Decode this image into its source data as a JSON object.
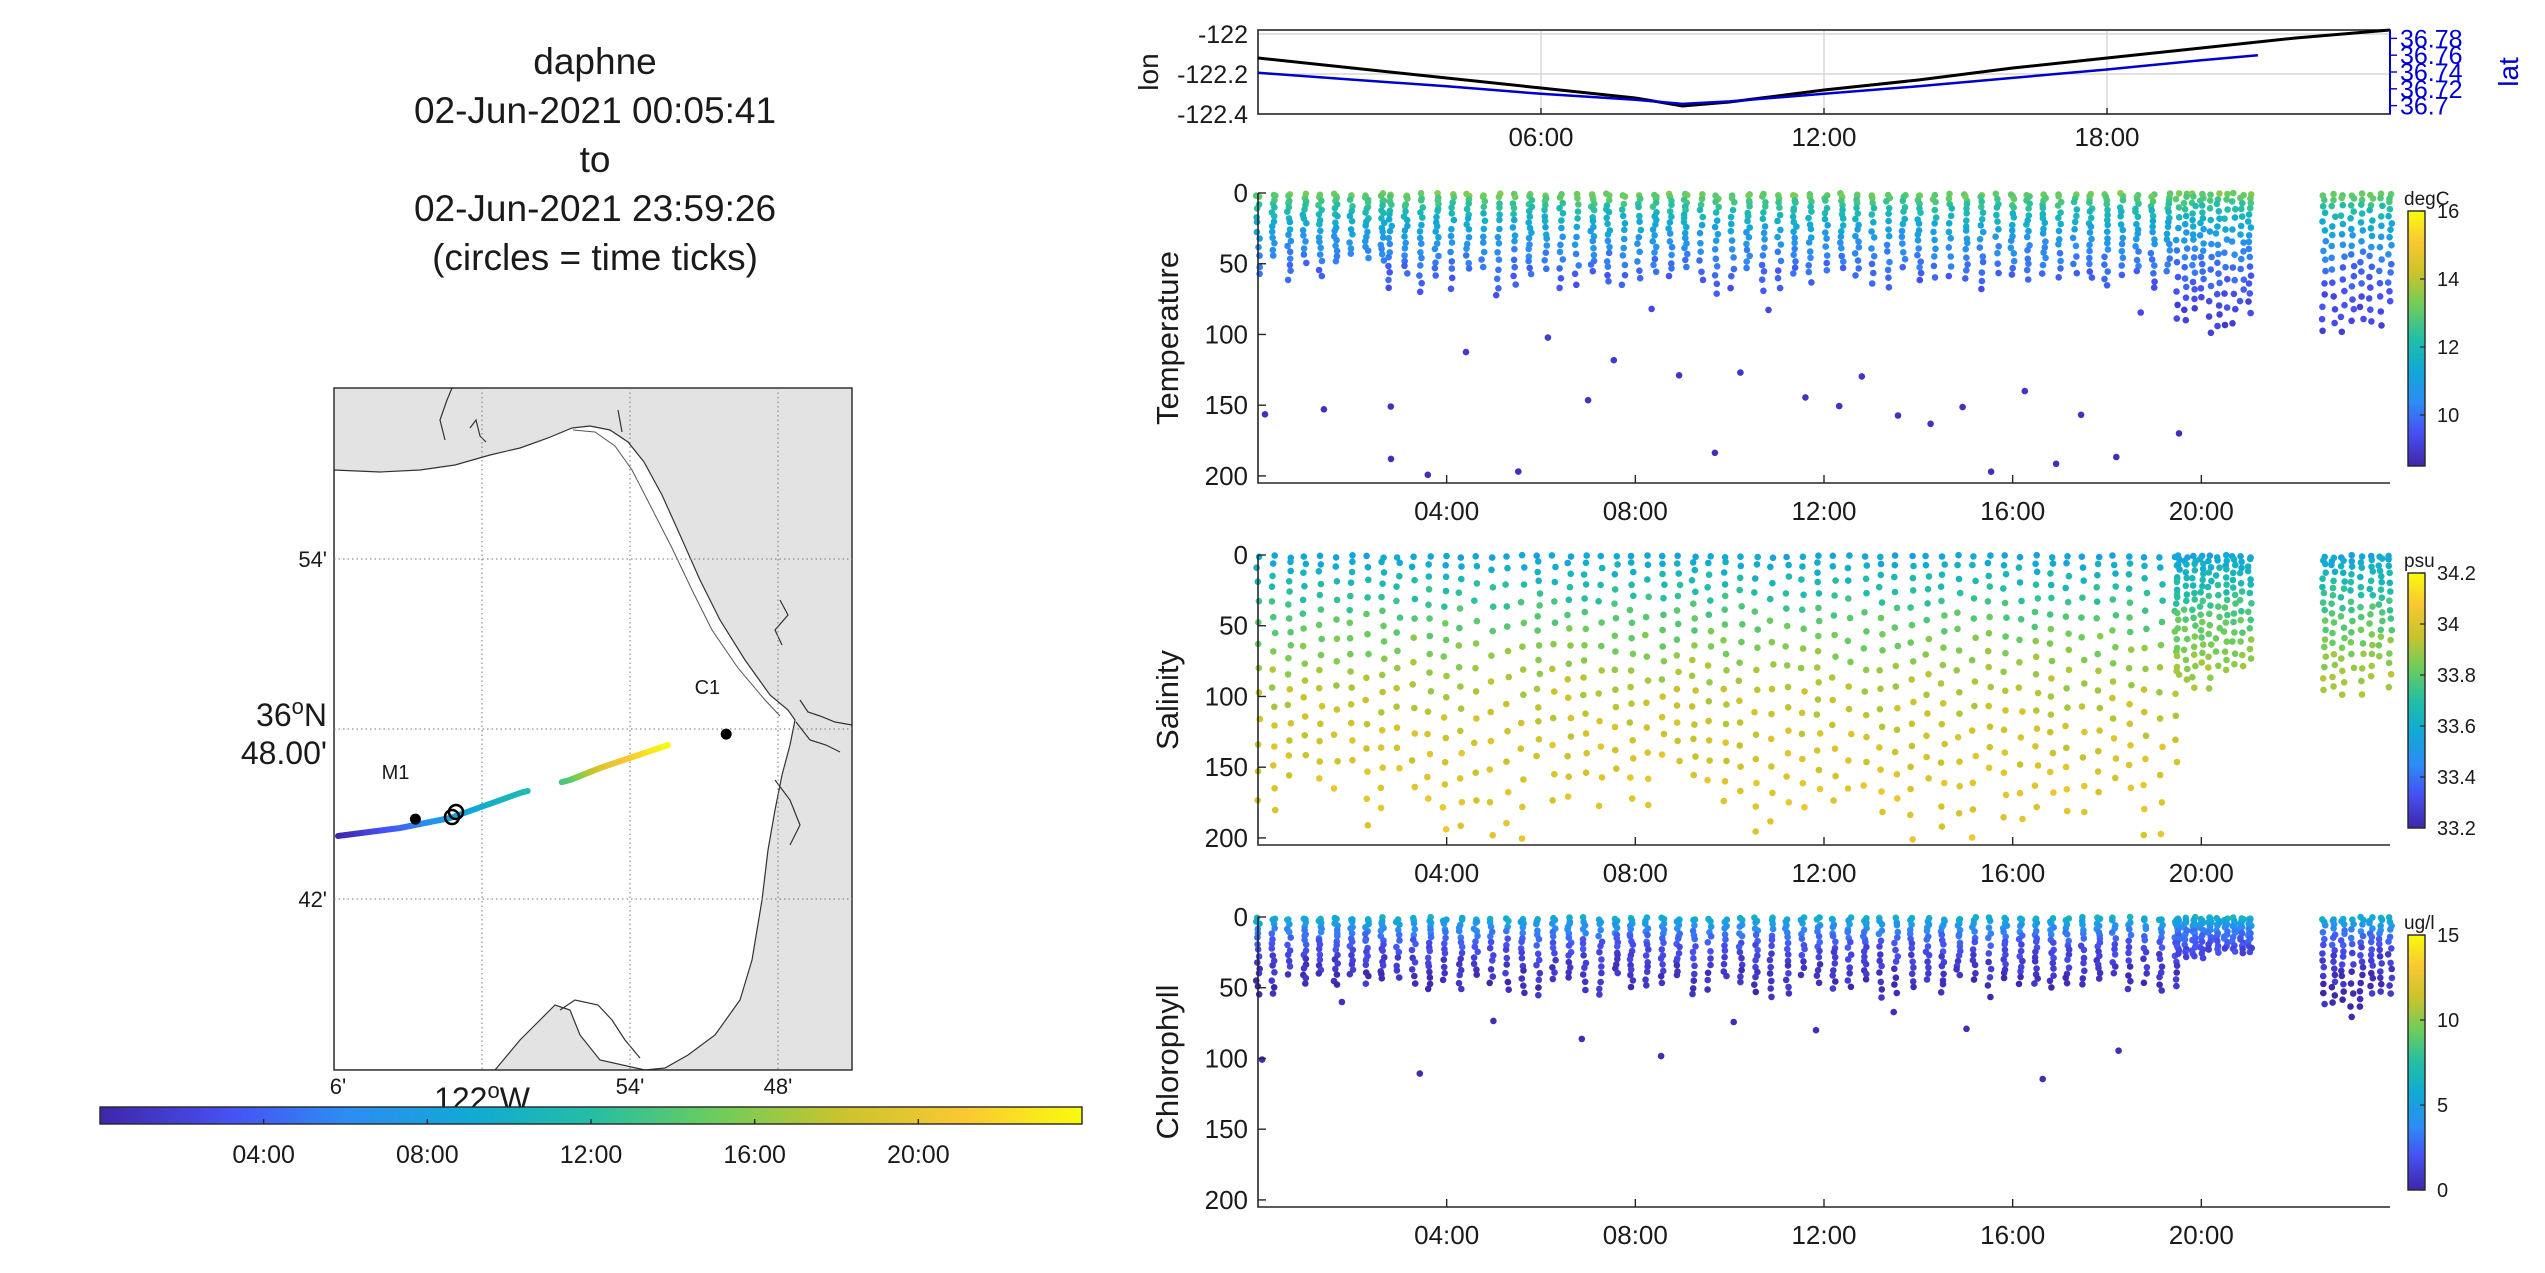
{
  "title_block": {
    "line1": "daphne",
    "line2": "02-Jun-2021 00:05:41",
    "line3": "to",
    "line4": "02-Jun-2021 23:59:26",
    "line5": "(circles = time ticks)"
  },
  "map": {
    "lat_ticks": [
      "54'",
      "42'"
    ],
    "lat_main_deg": "36",
    "lat_main_sup": "o",
    "lat_main_dir": "N",
    "lat_main_min": "48.00'",
    "lon_ticks": [
      "6'",
      "54'",
      "48'"
    ],
    "lon_main_deg": "122",
    "lon_main_sup": "o",
    "lon_main_dir": "W",
    "stations": [
      {
        "name": "M1",
        "lon": -122.045,
        "lat": 36.747
      },
      {
        "name": "C1",
        "lon": -121.835,
        "lat": 36.797
      }
    ],
    "colors": {
      "land": "#e3e3e3",
      "water": "#ffffff"
    }
  },
  "time_colorbar": {
    "ticks": [
      "04:00",
      "08:00",
      "12:00",
      "16:00",
      "20:00"
    ]
  },
  "chart_data": [
    {
      "type": "line",
      "panel": "position",
      "ylabel_left": "lon",
      "ylabel_right": "lat",
      "xlim": [
        0,
        24
      ],
      "xticks": [
        "06:00",
        "12:00",
        "18:00"
      ],
      "ylim_left": [
        -122.4,
        -121.98
      ],
      "yticks_left": [
        "-122",
        "-122.2",
        "-122.4"
      ],
      "ylim_right": [
        36.69,
        36.79
      ],
      "yticks_right": [
        "36.78",
        "36.76",
        "36.74",
        "36.72",
        "36.7"
      ],
      "grid": true,
      "series": [
        {
          "axis": "left",
          "color": "#000000",
          "x": [
            0,
            2,
            4,
            6,
            8,
            9,
            10,
            12,
            14,
            16,
            18,
            20,
            22,
            24
          ],
          "y": [
            -122.12,
            -122.17,
            -122.22,
            -122.27,
            -122.32,
            -122.36,
            -122.34,
            -122.28,
            -122.23,
            -122.17,
            -122.12,
            -122.07,
            -122.02,
            -121.98
          ]
        },
        {
          "axis": "right",
          "color": "#0000cc",
          "x": [
            0,
            2,
            4,
            6,
            8,
            9,
            10,
            12,
            14,
            16,
            18,
            20,
            21.2
          ],
          "y": [
            36.739,
            36.731,
            36.723,
            36.714,
            36.707,
            36.702,
            36.705,
            36.714,
            36.723,
            36.733,
            36.743,
            36.754,
            36.76
          ]
        }
      ]
    },
    {
      "type": "scatter",
      "panel": "temperature",
      "ylabel": "Temperature",
      "units": "degC",
      "xlim": [
        0,
        24
      ],
      "xticks": [
        "04:00",
        "08:00",
        "12:00",
        "16:00",
        "20:00"
      ],
      "ylim": [
        0,
        205
      ],
      "ylim_reversed": true,
      "yticks": [
        "0",
        "50",
        "100",
        "150",
        "200"
      ],
      "clim": [
        8.5,
        16
      ],
      "cticks": [
        "16",
        "14",
        "12",
        "10"
      ],
      "profiles": [
        {
          "start": 0.0,
          "end": 2.8,
          "every": 0.33,
          "max_depth": 60,
          "deep_every": 4,
          "deep_depth": 200
        },
        {
          "start": 2.8,
          "end": 19.5,
          "every": 0.33,
          "max_depth": 70,
          "deep_every": 2,
          "deep_depth": 200
        },
        {
          "start": 19.5,
          "end": 21.2,
          "every": 0.17,
          "max_depth": 100,
          "deep_every": 0,
          "deep_depth": 100
        },
        {
          "start": 22.6,
          "end": 24.0,
          "every": 0.2,
          "max_depth": 100,
          "deep_every": 0,
          "deep_depth": 100
        }
      ],
      "value_model": {
        "surface": 13.3,
        "base": 8.7,
        "scale": 40
      }
    },
    {
      "type": "scatter",
      "panel": "salinity",
      "ylabel": "Salinity",
      "units": "psu",
      "xlim": [
        0,
        24
      ],
      "xticks": [
        "04:00",
        "08:00",
        "12:00",
        "16:00",
        "20:00"
      ],
      "ylim": [
        0,
        205
      ],
      "ylim_reversed": true,
      "yticks": [
        "0",
        "50",
        "100",
        "150",
        "200"
      ],
      "clim": [
        33.2,
        34.2
      ],
      "cticks": [
        "34.2",
        "34",
        "33.8",
        "33.6",
        "33.4",
        "33.2"
      ],
      "profiles": [
        {
          "start": 0.0,
          "end": 19.5,
          "every": 0.33,
          "max_depth": 200,
          "deep_every": 0,
          "deep_depth": 200
        },
        {
          "start": 19.5,
          "end": 21.2,
          "every": 0.17,
          "max_depth": 100,
          "deep_every": 0,
          "deep_depth": 100
        },
        {
          "start": 22.6,
          "end": 24.0,
          "every": 0.2,
          "max_depth": 100,
          "deep_every": 0,
          "deep_depth": 100
        }
      ],
      "value_model": {
        "surface": 33.55,
        "base": 34.05,
        "scale": 70
      }
    },
    {
      "type": "scatter",
      "panel": "chlorophyll",
      "ylabel": "Chlorophyll",
      "units": "ug/l",
      "xlim": [
        0,
        24
      ],
      "xticks": [
        "04:00",
        "08:00",
        "12:00",
        "16:00",
        "20:00"
      ],
      "ylim": [
        0,
        205
      ],
      "ylim_reversed": true,
      "yticks": [
        "0",
        "50",
        "100",
        "150",
        "200"
      ],
      "clim": [
        0,
        15
      ],
      "cticks": [
        "15",
        "10",
        "5",
        "0"
      ],
      "profiles": [
        {
          "start": 0.0,
          "end": 19.5,
          "every": 0.33,
          "max_depth": 55,
          "deep_every": 5,
          "deep_depth": 120
        },
        {
          "start": 19.5,
          "end": 21.2,
          "every": 0.17,
          "max_depth": 30,
          "deep_every": 0,
          "deep_depth": 30
        },
        {
          "start": 22.6,
          "end": 24.0,
          "every": 0.2,
          "max_depth": 70,
          "deep_every": 0,
          "deep_depth": 70
        }
      ],
      "value_model": {
        "surface": 6.5,
        "base": 0.3,
        "scale": 15
      }
    }
  ]
}
